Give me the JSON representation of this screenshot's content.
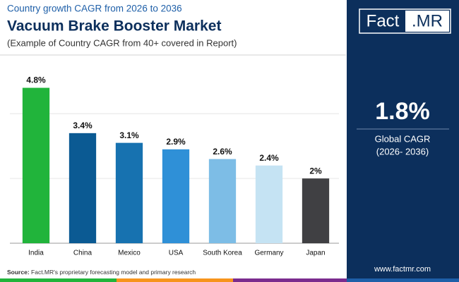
{
  "header": {
    "kicker": "Country growth CAGR from 2026 to 2036",
    "title": "Vacuum Brake Booster Market",
    "subtitle": "(Example of Country CAGR from 40+ covered in Report)"
  },
  "chart_data": {
    "type": "bar",
    "categories": [
      "India",
      "China",
      "Mexico",
      "USA",
      "South Korea",
      "Germany",
      "Japan"
    ],
    "values": [
      4.8,
      3.4,
      3.1,
      2.9,
      2.6,
      2.4,
      2
    ],
    "value_labels": [
      "4.8%",
      "3.4%",
      "3.1%",
      "2.9%",
      "2.6%",
      "2.4%",
      "2%"
    ],
    "colors": [
      "#21b43b",
      "#0b5a93",
      "#1772b0",
      "#2f90d7",
      "#7dbde6",
      "#c5e3f3",
      "#404043"
    ],
    "ylim": [
      0,
      5.4
    ],
    "yticks": [
      0,
      2,
      4
    ],
    "grid": true
  },
  "sidebar": {
    "logo_left": "Fact",
    "logo_right": ".MR",
    "global_value": "1.8%",
    "global_label": "Global CAGR",
    "global_period": "(2026- 2036)",
    "website": "www.factmr.com"
  },
  "footer": {
    "source_label": "Source:",
    "source_text": "Fact.MR's proprietary forecasting model and primary research"
  }
}
